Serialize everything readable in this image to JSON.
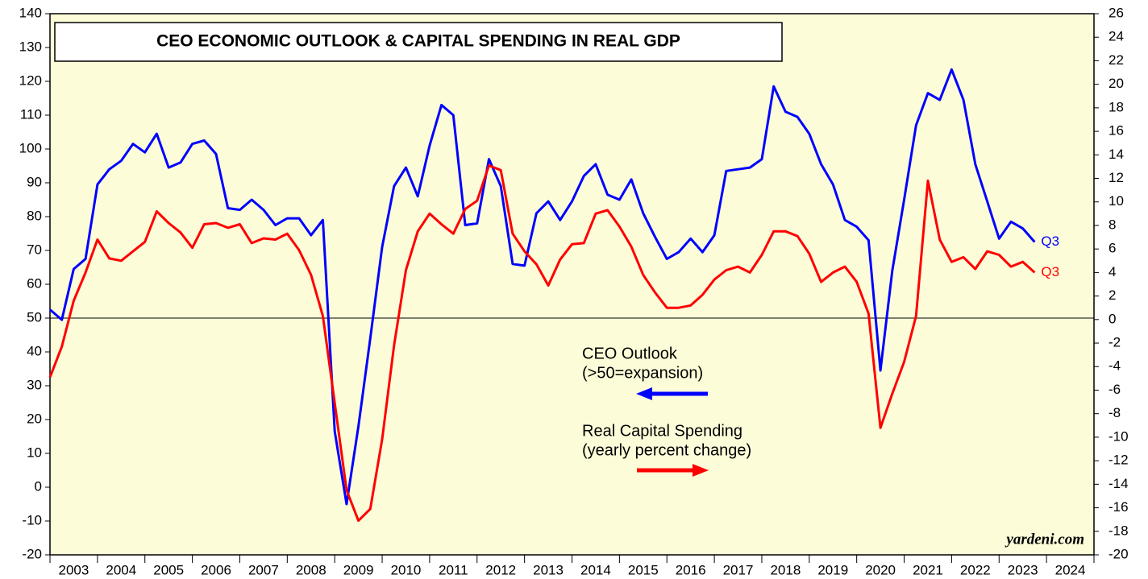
{
  "chart_data": {
    "type": "line",
    "title": "CEO ECONOMIC OUTLOOK & CAPITAL SPENDING IN REAL GDP",
    "source": "yardeni.com",
    "x": [
      2003,
      2003.25,
      2003.5,
      2003.75,
      2004,
      2004.25,
      2004.5,
      2004.75,
      2005,
      2005.25,
      2005.5,
      2005.75,
      2006,
      2006.25,
      2006.5,
      2006.75,
      2007,
      2007.25,
      2007.5,
      2007.75,
      2008,
      2008.25,
      2008.5,
      2008.75,
      2009,
      2009.25,
      2009.5,
      2009.75,
      2010,
      2010.25,
      2010.5,
      2010.75,
      2011,
      2011.25,
      2011.5,
      2011.75,
      2012,
      2012.25,
      2012.5,
      2012.75,
      2013,
      2013.25,
      2013.5,
      2013.75,
      2014,
      2014.25,
      2014.5,
      2014.75,
      2015,
      2015.25,
      2015.5,
      2015.75,
      2016,
      2016.25,
      2016.5,
      2016.75,
      2017,
      2017.25,
      2017.5,
      2017.75,
      2018,
      2018.25,
      2018.5,
      2018.75,
      2019,
      2019.25,
      2019.5,
      2019.75,
      2020,
      2020.25,
      2020.5,
      2020.75,
      2021,
      2021.25,
      2021.5,
      2021.75,
      2022,
      2022.25,
      2022.5,
      2022.75,
      2023,
      2023.25,
      2023.5,
      2023.75
    ],
    "xlim": [
      2003,
      2025
    ],
    "xticks": [
      2003,
      2004,
      2005,
      2006,
      2007,
      2008,
      2009,
      2010,
      2011,
      2012,
      2013,
      2014,
      2015,
      2016,
      2017,
      2018,
      2019,
      2020,
      2021,
      2022,
      2023,
      2024,
      2025
    ],
    "year_labels": [
      2003,
      2004,
      2005,
      2006,
      2007,
      2008,
      2009,
      2010,
      2011,
      2012,
      2013,
      2014,
      2015,
      2016,
      2017,
      2018,
      2019,
      2020,
      2021,
      2022,
      2023,
      2024
    ],
    "ylim": [
      -20,
      140
    ],
    "yticks": [
      -20,
      -10,
      0,
      10,
      20,
      30,
      40,
      50,
      60,
      70,
      80,
      90,
      100,
      110,
      120,
      130,
      140
    ],
    "y2lim": [
      -20,
      26
    ],
    "y2ticks": [
      -20,
      -18,
      -16,
      -14,
      -12,
      -10,
      -8,
      -6,
      -4,
      -2,
      0,
      2,
      4,
      6,
      8,
      10,
      12,
      14,
      16,
      18,
      20,
      22,
      24,
      26
    ],
    "reference_line": 50,
    "series": [
      {
        "name": "CEO Outlook",
        "description": "(>50=expansion)",
        "end_label": "Q3",
        "color": "#0000ff",
        "axis": "y",
        "values": [
          52.5,
          49.5,
          64.5,
          67.5,
          89.5,
          94,
          96.5,
          101.5,
          99,
          104.5,
          94.5,
          96,
          101.5,
          102.5,
          98.5,
          82.5,
          82,
          85,
          82,
          77.5,
          79.5,
          79.5,
          74.5,
          79,
          16.5,
          -5,
          18,
          44,
          71,
          89,
          94.5,
          86,
          101,
          113,
          110,
          77.5,
          78,
          97,
          89,
          66,
          65.5,
          81,
          84.5,
          79,
          84.5,
          92,
          95.5,
          86.5,
          85,
          91,
          81,
          74,
          67.5,
          69.5,
          73.5,
          69.5,
          74.5,
          93.5,
          94,
          94.5,
          97,
          118.5,
          111,
          109.5,
          104.5,
          95.5,
          89.5,
          79,
          77,
          73,
          34.5,
          64,
          85,
          107,
          116.5,
          114.5,
          123.5,
          114.5,
          95.5,
          84.5,
          73.5,
          78.5,
          76.5,
          72.5
        ]
      },
      {
        "name": "Real Capital Spending",
        "description": "(yearly percent change)",
        "end_label": "Q3",
        "color": "#ff0000",
        "axis": "y2",
        "values": [
          -4.9,
          -2.3,
          1.6,
          4.0,
          6.8,
          5.2,
          5.0,
          5.8,
          6.6,
          9.2,
          8.2,
          7.4,
          6.1,
          8.1,
          8.2,
          7.8,
          8.1,
          6.5,
          6.9,
          6.8,
          7.3,
          5.9,
          3.8,
          0.3,
          -7.1,
          -14.5,
          -17.1,
          -16.1,
          -10.2,
          -2.2,
          4.2,
          7.5,
          9.0,
          8.1,
          7.3,
          9.4,
          10.1,
          13.1,
          12.7,
          7.3,
          5.8,
          4.7,
          2.9,
          5.1,
          6.4,
          6.5,
          9.0,
          9.3,
          7.9,
          6.2,
          3.8,
          2.3,
          1.0,
          1.0,
          1.2,
          2.1,
          3.4,
          4.2,
          4.5,
          4.0,
          5.5,
          7.5,
          7.5,
          7.1,
          5.6,
          3.2,
          4.0,
          4.5,
          3.2,
          0.5,
          -9.2,
          -6.3,
          -3.6,
          0.3,
          11.8,
          6.8,
          4.9,
          5.3,
          4.3,
          5.8,
          5.5,
          4.5,
          4.9,
          4.0
        ]
      }
    ]
  }
}
